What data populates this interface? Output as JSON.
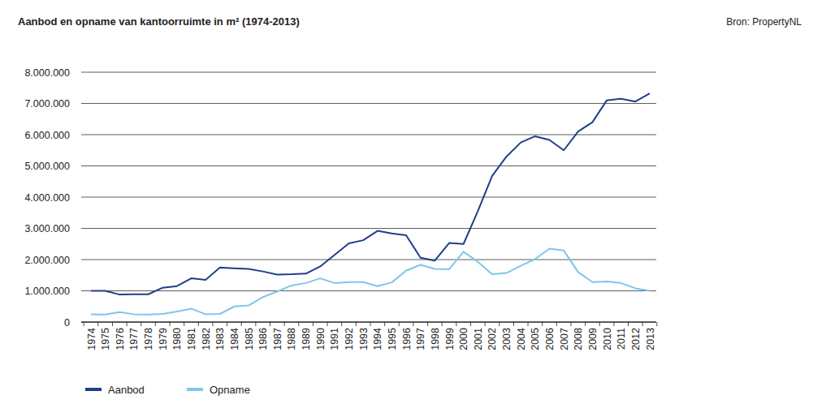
{
  "chart_data": {
    "type": "line",
    "title": "Aanbod en opname van kantoorruimte in m² (1974-2013)",
    "source": "Bron: PropertyNL",
    "categories": [
      "1974",
      "1975",
      "1976",
      "1977",
      "1978",
      "1979",
      "1980",
      "1981",
      "1982",
      "1983",
      "1984",
      "1985",
      "1986",
      "1987",
      "1988",
      "1989",
      "1990",
      "1991",
      "1992",
      "1993",
      "1994",
      "1995",
      "1996",
      "1997",
      "1998",
      "1999",
      "2000",
      "2001",
      "2002",
      "2003",
      "2004",
      "2005",
      "2006",
      "2007",
      "2008",
      "2009",
      "2010",
      "2011",
      "2012",
      "2013"
    ],
    "series": [
      {
        "name": "Aanbod",
        "color": "#1f3f8a",
        "values": [
          1000000,
          1000000,
          880000,
          890000,
          890000,
          1100000,
          1150000,
          1400000,
          1350000,
          1750000,
          1720000,
          1700000,
          1620000,
          1520000,
          1530000,
          1550000,
          1780000,
          2150000,
          2520000,
          2620000,
          2920000,
          2840000,
          2780000,
          2060000,
          1970000,
          2530000,
          2500000,
          3550000,
          4680000,
          5300000,
          5750000,
          5950000,
          5830000,
          5500000,
          6100000,
          6400000,
          7100000,
          7150000,
          7060000,
          7320000
        ]
      },
      {
        "name": "Opname",
        "color": "#7fc6ea",
        "values": [
          250000,
          240000,
          320000,
          250000,
          240000,
          260000,
          340000,
          430000,
          250000,
          260000,
          500000,
          530000,
          800000,
          980000,
          1170000,
          1250000,
          1400000,
          1250000,
          1280000,
          1280000,
          1150000,
          1270000,
          1650000,
          1830000,
          1700000,
          1690000,
          2250000,
          1930000,
          1530000,
          1570000,
          1800000,
          2020000,
          2350000,
          2290000,
          1600000,
          1280000,
          1300000,
          1250000,
          1080000,
          1000000
        ]
      }
    ],
    "ylim": [
      0,
      8000000
    ],
    "yticks": [
      0,
      {
        "value": 1000000,
        "label": "1.000.000"
      },
      {
        "value": 2000000,
        "label": "2.000.000"
      },
      {
        "value": 3000000,
        "label": "3.000.000"
      },
      {
        "value": 4000000,
        "label": "4.000.000"
      },
      {
        "value": 5000000,
        "label": "5.000.000"
      },
      {
        "value": 6000000,
        "label": "6.000.000"
      },
      {
        "value": 7000000,
        "label": "7.000.000"
      },
      {
        "value": 8000000,
        "label": "8.000.000"
      }
    ],
    "grid": true,
    "legend": "bottom"
  }
}
